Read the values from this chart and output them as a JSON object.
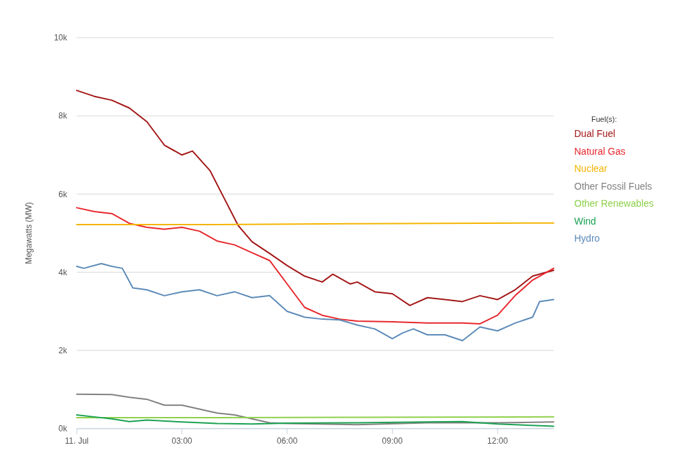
{
  "chart_data": {
    "type": "line",
    "ylabel": "Megawatts (MW)",
    "legend_title": "Fuel(s):",
    "legend": "right",
    "grid": "y",
    "marker": "none",
    "xlim": [
      0,
      13.6
    ],
    "xticks": [
      {
        "value": 0,
        "label": "11. Jul"
      },
      {
        "value": 3,
        "label": "03:00"
      },
      {
        "value": 6,
        "label": "06:00"
      },
      {
        "value": 9,
        "label": "09:00"
      },
      {
        "value": 12,
        "label": "12:00"
      }
    ],
    "ylim": [
      0,
      10000
    ],
    "yticks": [
      {
        "value": 0,
        "label": "0k"
      },
      {
        "value": 2000,
        "label": "2k"
      },
      {
        "value": 4000,
        "label": "4k"
      },
      {
        "value": 6000,
        "label": "6k"
      },
      {
        "value": 8000,
        "label": "8k"
      },
      {
        "value": 10000,
        "label": "10k"
      }
    ],
    "series": [
      {
        "name": "Dual Fuel",
        "color": "#a31515",
        "x": [
          0,
          0.5,
          1,
          1.5,
          2,
          2.5,
          3,
          3.3,
          3.8,
          4.2,
          4.6,
          5,
          5.5,
          6,
          6.5,
          7,
          7.3,
          7.8,
          8,
          8.5,
          9,
          9.5,
          10,
          10.5,
          11,
          11.5,
          12,
          12.5,
          13,
          13.6
        ],
        "values": [
          8650,
          8500,
          8400,
          8200,
          7850,
          7250,
          7000,
          7100,
          6600,
          5900,
          5200,
          4780,
          4480,
          4170,
          3900,
          3750,
          3950,
          3700,
          3750,
          3500,
          3450,
          3150,
          3350,
          3300,
          3250,
          3400,
          3300,
          3550,
          3900,
          4050
        ]
      },
      {
        "name": "Natural Gas",
        "color": "#e8262b",
        "x": [
          0,
          0.5,
          1,
          1.5,
          2,
          2.5,
          3,
          3.5,
          4,
          4.5,
          5,
          5.5,
          6,
          6.5,
          7,
          7.5,
          8,
          9,
          10,
          11,
          11.5,
          12,
          12.5,
          13,
          13.6
        ],
        "values": [
          5650,
          5550,
          5500,
          5250,
          5150,
          5100,
          5150,
          5050,
          4800,
          4700,
          4500,
          4300,
          3700,
          3100,
          2900,
          2800,
          2750,
          2730,
          2700,
          2700,
          2680,
          2900,
          3400,
          3800,
          4100
        ]
      },
      {
        "name": "Nuclear",
        "color": "#f5b400",
        "x": [
          0,
          4,
          8,
          13.6
        ],
        "values": [
          5220,
          5220,
          5240,
          5260
        ]
      },
      {
        "name": "Other Fossil Fuels",
        "color": "#808080",
        "x": [
          0,
          1,
          1.5,
          2,
          2.5,
          3,
          3.5,
          4,
          4.5,
          5,
          5.5,
          6,
          8,
          10,
          12,
          13.6
        ],
        "values": [
          880,
          870,
          800,
          750,
          600,
          600,
          500,
          400,
          350,
          250,
          150,
          130,
          100,
          150,
          150,
          170
        ]
      },
      {
        "name": "Other Renewables",
        "color": "#8ed04a",
        "x": [
          0,
          4,
          8,
          13.6
        ],
        "values": [
          280,
          280,
          290,
          300
        ]
      },
      {
        "name": "Wind",
        "color": "#1aa152",
        "x": [
          0,
          0.5,
          1,
          1.5,
          2,
          3,
          4,
          5,
          6,
          8,
          10,
          11,
          12,
          13.6
        ],
        "values": [
          350,
          300,
          250,
          180,
          220,
          170,
          130,
          120,
          140,
          150,
          170,
          180,
          120,
          60
        ]
      },
      {
        "name": "Hydro",
        "color": "#5b8ab8",
        "x": [
          0,
          0.2,
          0.7,
          1,
          1.3,
          1.6,
          2,
          2.5,
          3,
          3.5,
          4,
          4.5,
          5,
          5.5,
          6,
          6.5,
          7,
          7.5,
          8,
          8.5,
          9,
          9.3,
          9.6,
          10,
          10.5,
          11,
          11.5,
          12,
          12.5,
          13,
          13.2,
          13.6
        ],
        "values": [
          4150,
          4100,
          4220,
          4150,
          4100,
          3600,
          3550,
          3400,
          3500,
          3550,
          3400,
          3500,
          3350,
          3400,
          3000,
          2850,
          2800,
          2780,
          2650,
          2550,
          2300,
          2450,
          2550,
          2400,
          2400,
          2250,
          2600,
          2500,
          2700,
          2850,
          3250,
          3300
        ]
      }
    ]
  }
}
